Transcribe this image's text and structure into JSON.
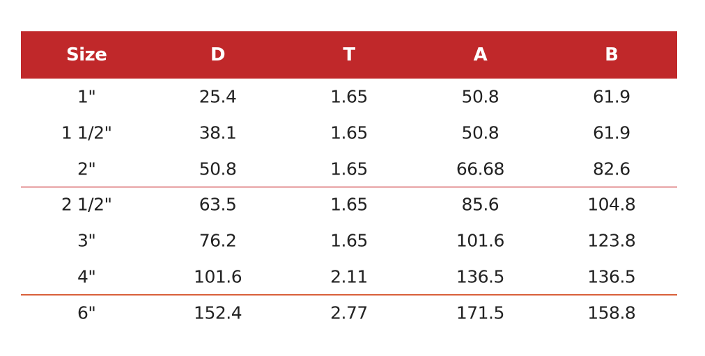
{
  "table": {
    "header": [
      "Size",
      "D",
      "T",
      "A",
      "B"
    ],
    "rows": [
      [
        "1\"",
        "25.4",
        "1.65",
        "50.8",
        "61.9"
      ],
      [
        "1 1/2\"",
        "38.1",
        "1.65",
        "50.8",
        "61.9"
      ],
      [
        "2\"",
        "50.8",
        "1.65",
        "66.68",
        "82.6"
      ],
      [
        "2 1/2\"",
        "63.5",
        "1.65",
        "85.6",
        "104.8"
      ],
      [
        "3\"",
        "76.2",
        "1.65",
        "101.6",
        "123.8"
      ],
      [
        "4\"",
        "101.6",
        "2.11",
        "136.5",
        "136.5"
      ],
      [
        "6\"",
        "152.4",
        "2.77",
        "171.5",
        "158.8"
      ]
    ]
  }
}
